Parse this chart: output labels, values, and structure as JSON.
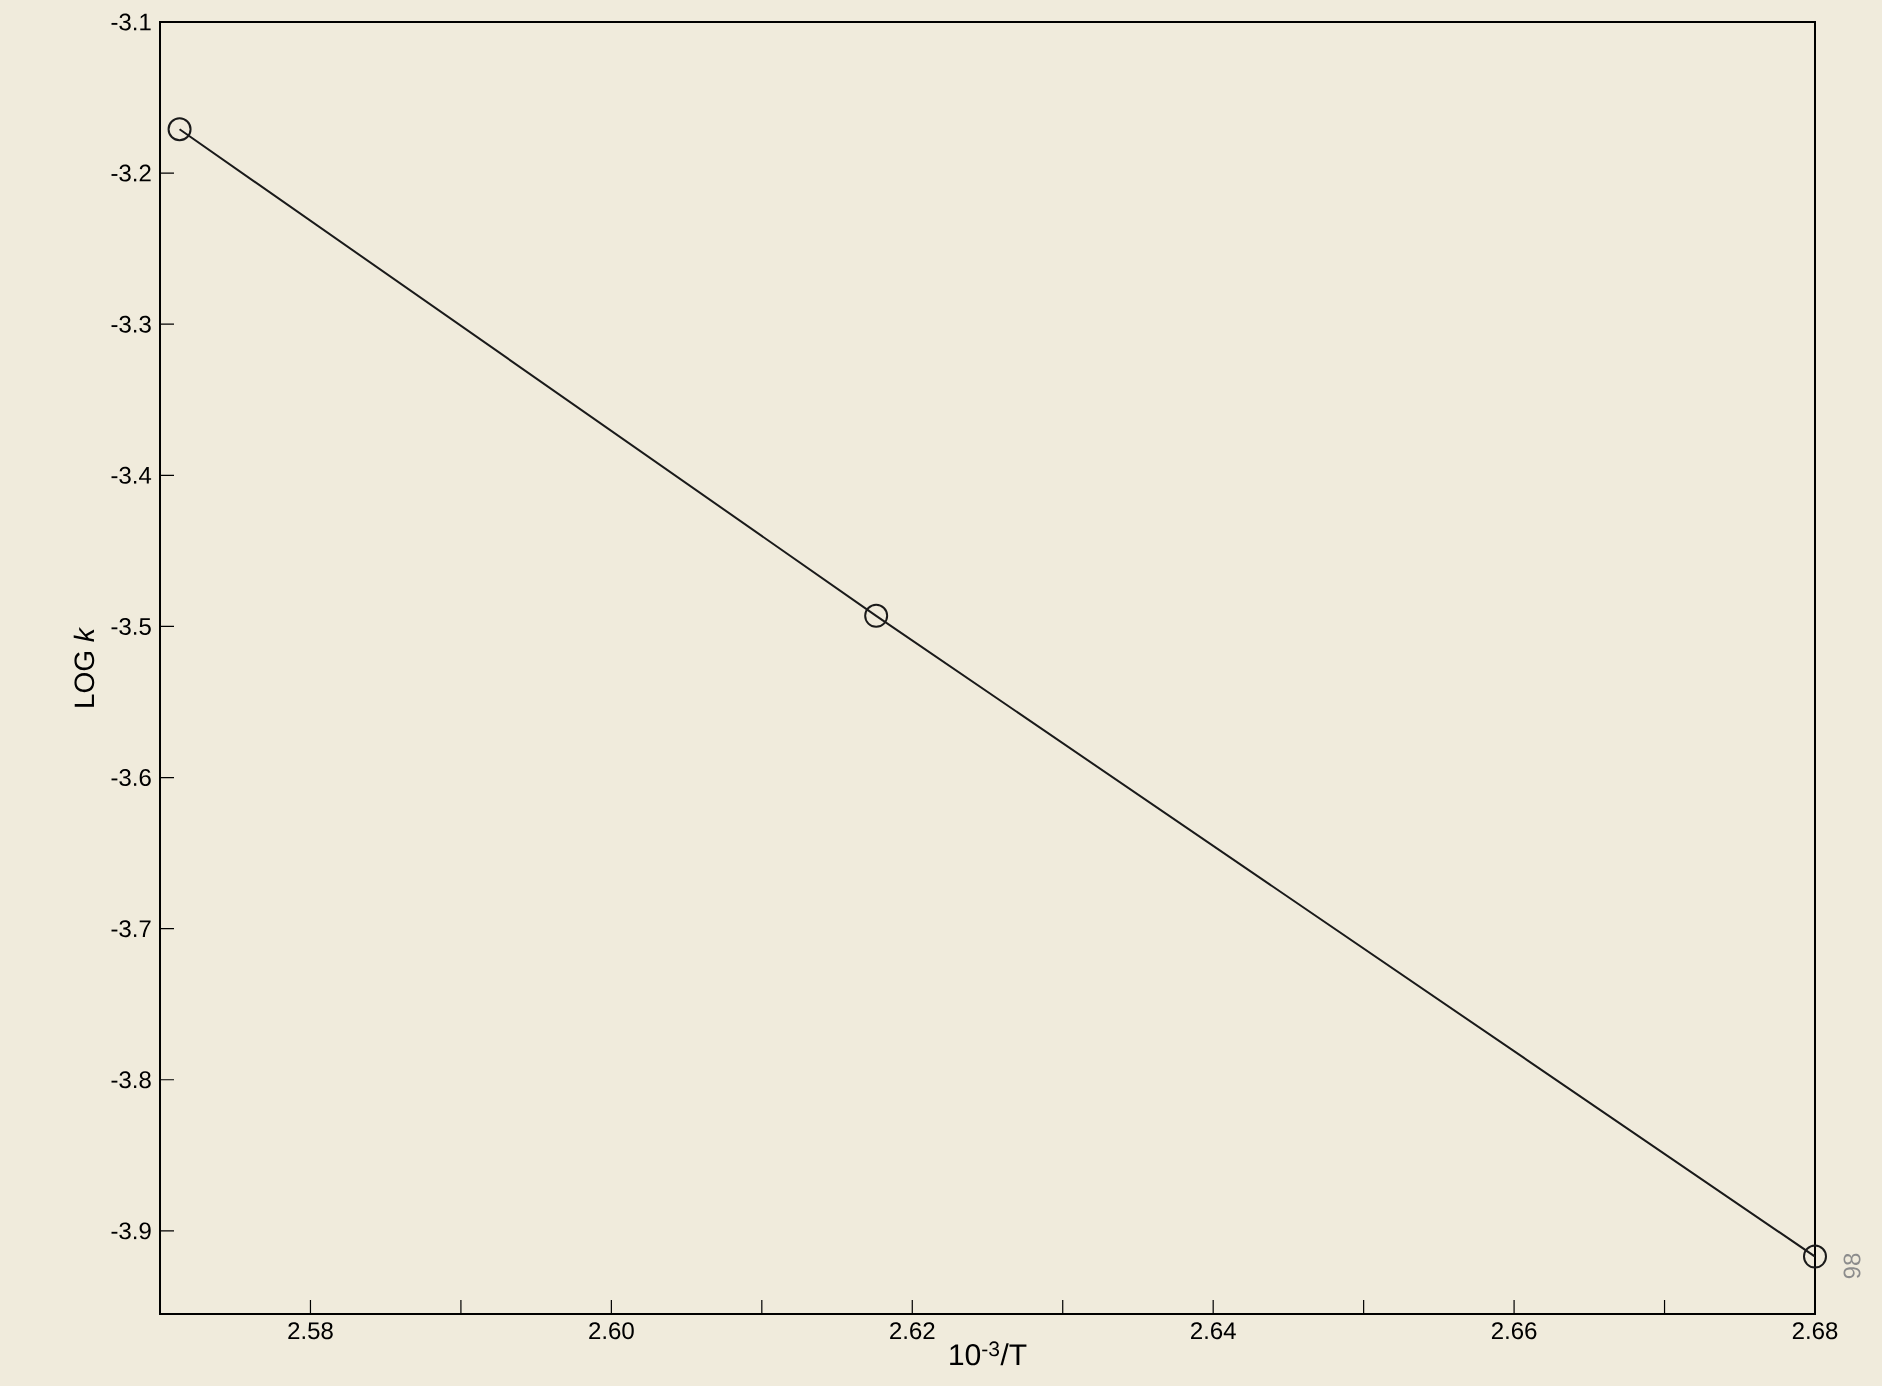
{
  "chart_data": {
    "type": "line",
    "xlabel": "10$^{-3}$/T",
    "ylabel": "LOG *k*",
    "x": [
      2.5713,
      2.6176,
      2.68
    ],
    "series": [
      {
        "color": "#1a1a1a",
        "values": [
          -3.171,
          -3.493,
          -3.917
        ]
      }
    ],
    "xlim": [
      2.57,
      2.68
    ],
    "ylim": [
      -3.955,
      -3.1
    ],
    "xticks": [
      {
        "value": 2.58,
        "label": "2.58"
      },
      {
        "value": 2.59,
        "label": null
      },
      {
        "value": 2.6,
        "label": "2.60"
      },
      {
        "value": 2.61,
        "label": null
      },
      {
        "value": 2.62,
        "label": "2.62"
      },
      {
        "value": 2.63,
        "label": null
      },
      {
        "value": 2.64,
        "label": "2.64"
      },
      {
        "value": 2.65,
        "label": null
      },
      {
        "value": 2.66,
        "label": "2.66"
      },
      {
        "value": 2.67,
        "label": null
      },
      {
        "value": 2.68,
        "label": "2.68"
      }
    ],
    "yticks": [
      -3.1,
      -3.2,
      -3.3,
      -3.4,
      -3.5,
      -3.6,
      -3.7,
      -3.8,
      -3.9
    ],
    "marker": "circle",
    "line_style": "solid",
    "grid": false,
    "annotations": [
      "98"
    ]
  }
}
